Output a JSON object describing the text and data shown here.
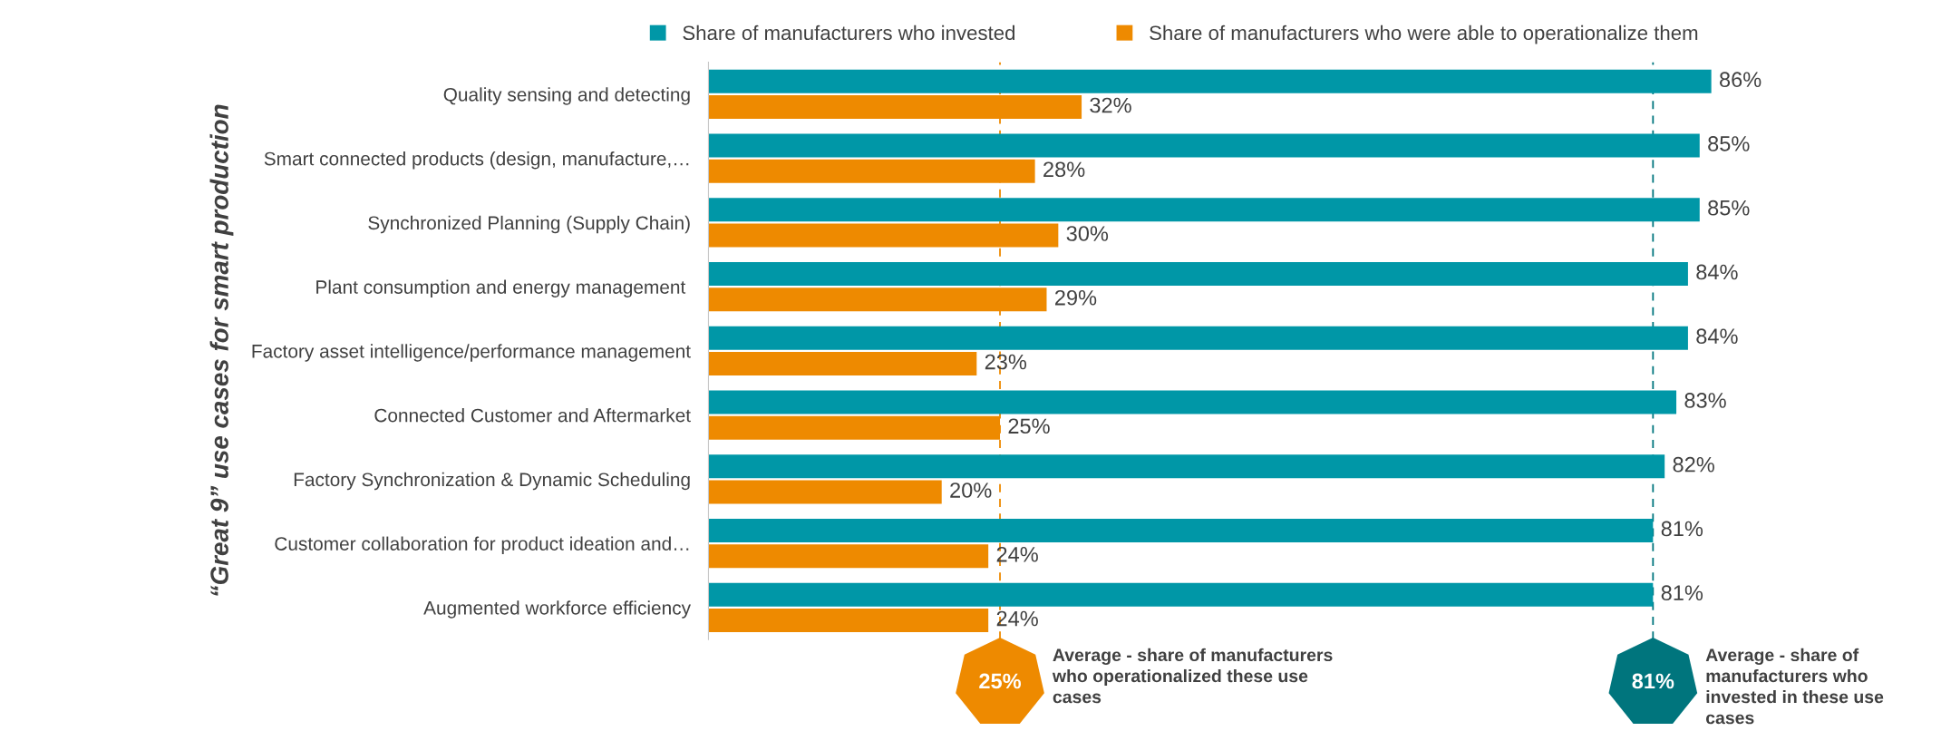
{
  "chart_data": {
    "type": "bar",
    "orientation": "horizontal",
    "ylabel": "“Great 9” use cases for smart production",
    "categories": [
      "Quality sensing and detecting",
      "Smart connected products (design, manufacture,…",
      "Synchronized Planning (Supply Chain)",
      "Plant consumption and energy management ",
      "Factory asset intelligence/performance management",
      "Connected Customer and Aftermarket",
      "Factory Synchronization & Dynamic Scheduling",
      "Customer collaboration for product ideation and…",
      "Augmented workforce efficiency"
    ],
    "series": [
      {
        "name": "Share of manufacturers who invested",
        "color": "#0097a7",
        "values": [
          86,
          85,
          85,
          84,
          84,
          83,
          82,
          81,
          81
        ],
        "value_labels": [
          "86%",
          "85%",
          "85%",
          "84%",
          "84%",
          "83%",
          "82%",
          "81%",
          "81%"
        ]
      },
      {
        "name": "Share of manufacturers who were able to operationalize them",
        "color": "#ee8a00",
        "values": [
          32,
          28,
          30,
          29,
          23,
          25,
          20,
          24,
          24
        ],
        "value_labels": [
          "32%",
          "28%",
          "30%",
          "29%",
          "23%",
          "25%",
          "20%",
          "24%",
          "24%"
        ]
      }
    ],
    "tick_labels": "y",
    "legend": "top",
    "ref_lines": [
      {
        "axis": "x",
        "value": 25,
        "label": "25%",
        "color": "#ee8a00",
        "line_style": "dashed"
      },
      {
        "axis": "x",
        "value": 81,
        "label": "81%",
        "color": "#00757d",
        "line_style": "dashed"
      }
    ],
    "annotations": [
      "Average - share of manufacturers\nwho operationalized these use\ncases",
      "Average - share of\nmanufacturers who\ninvested in these use\ncases"
    ]
  }
}
